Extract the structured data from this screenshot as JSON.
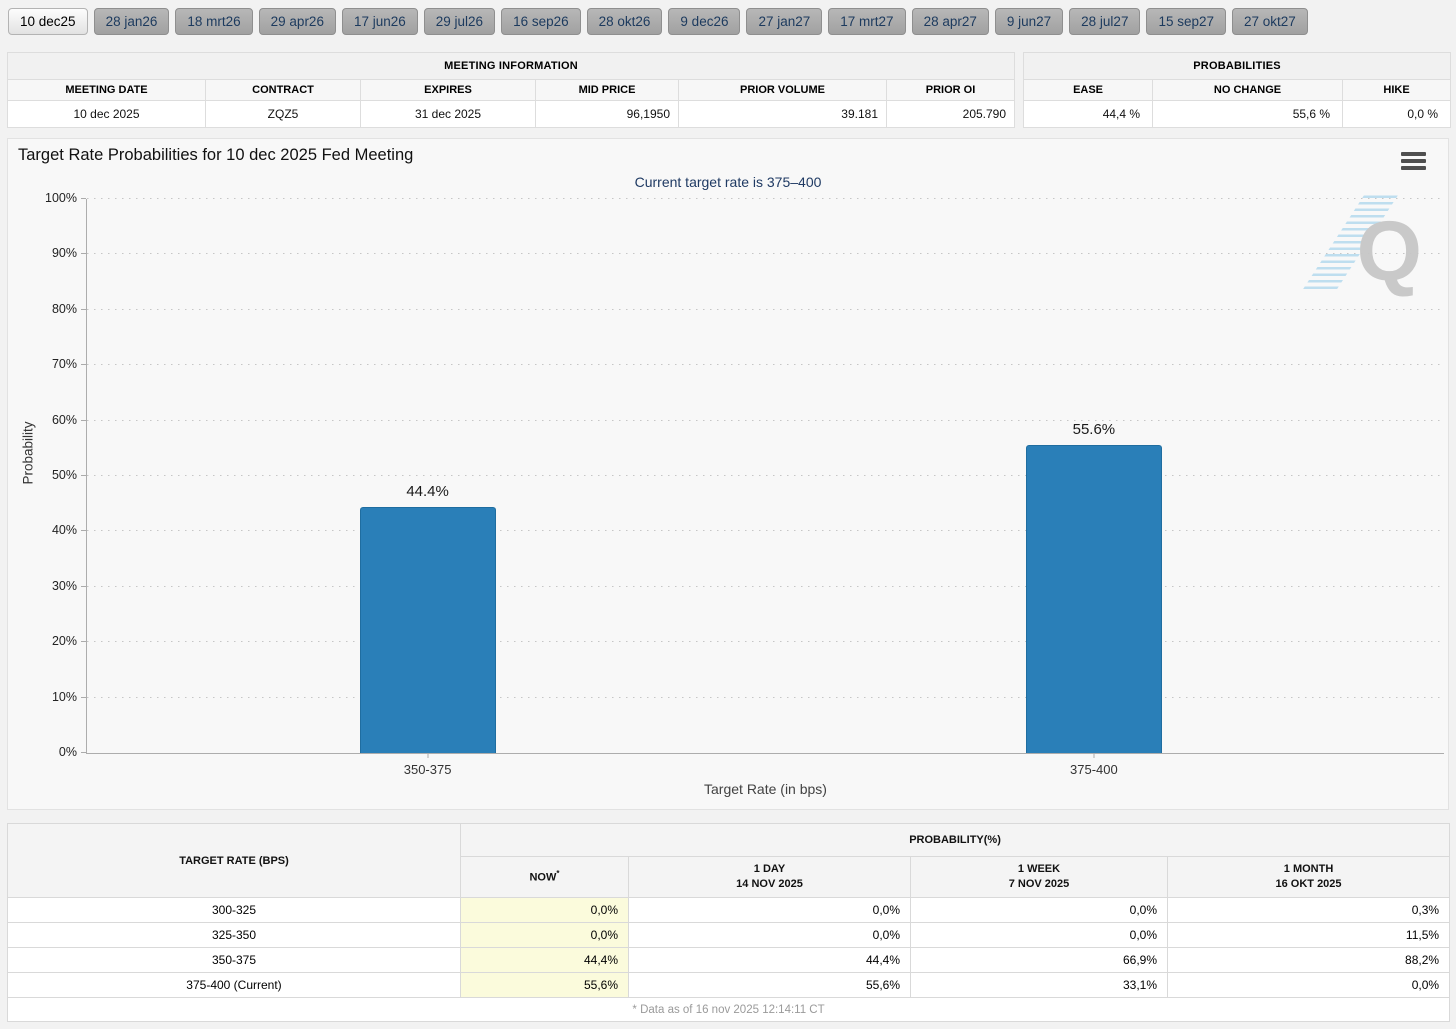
{
  "tabs": [
    {
      "label": "10 dec25",
      "selected": true
    },
    {
      "label": "28 jan26",
      "selected": false
    },
    {
      "label": "18 mrt26",
      "selected": false
    },
    {
      "label": "29 apr26",
      "selected": false
    },
    {
      "label": "17 jun26",
      "selected": false
    },
    {
      "label": "29 jul26",
      "selected": false
    },
    {
      "label": "16 sep26",
      "selected": false
    },
    {
      "label": "28 okt26",
      "selected": false
    },
    {
      "label": "9 dec26",
      "selected": false
    },
    {
      "label": "27 jan27",
      "selected": false
    },
    {
      "label": "17 mrt27",
      "selected": false
    },
    {
      "label": "28 apr27",
      "selected": false
    },
    {
      "label": "9 jun27",
      "selected": false
    },
    {
      "label": "28 jul27",
      "selected": false
    },
    {
      "label": "15 sep27",
      "selected": false
    },
    {
      "label": "27 okt27",
      "selected": false
    }
  ],
  "meeting_info": {
    "title": "MEETING INFORMATION",
    "headers": [
      "MEETING DATE",
      "CONTRACT",
      "EXPIRES",
      "MID PRICE",
      "PRIOR VOLUME",
      "PRIOR OI"
    ],
    "values": [
      "10 dec 2025",
      "ZQZ5",
      "31 dec 2025",
      "96,1950",
      "39.181",
      "205.790"
    ]
  },
  "probabilities": {
    "title": "PROBABILITIES",
    "headers": [
      "EASE",
      "NO CHANGE",
      "HIKE"
    ],
    "values": [
      "44,4 %",
      "55,6 %",
      "0,0 %"
    ]
  },
  "menu_icon": "hamburger-menu",
  "watermark_letter": "Q",
  "chart_data": {
    "type": "bar",
    "title": "Target Rate Probabilities for 10 dec 2025 Fed Meeting",
    "subtitle": "Current target rate is 375–400",
    "categories": [
      "350-375",
      "375-400"
    ],
    "values": [
      44.4,
      55.6
    ],
    "bar_labels": [
      "44.4%",
      "55.6%"
    ],
    "bar_positions_pct": [
      25.1,
      74.2
    ],
    "xlabel": "Target Rate (in bps)",
    "ylabel": "Probability",
    "ylim": [
      0,
      100
    ],
    "y_ticks": [
      "0%",
      "10%",
      "20%",
      "30%",
      "40%",
      "50%",
      "60%",
      "70%",
      "80%",
      "90%",
      "100%"
    ],
    "grid": "dotted-horizontal",
    "legend": "none",
    "bar_color": "#2a7fb8"
  },
  "history_table": {
    "rate_header": "TARGET RATE (BPS)",
    "group_header": "PROBABILITY(%)",
    "col_now": "NOW",
    "col_now_sup": "*",
    "col_1day_l1": "1 DAY",
    "col_1day_l2": "14 NOV 2025",
    "col_1week_l1": "1 WEEK",
    "col_1week_l2": "7 NOV 2025",
    "col_1month_l1": "1 MONTH",
    "col_1month_l2": "16 OKT 2025",
    "rows": [
      {
        "rate": "300-325",
        "now": "0,0%",
        "d1": "0,0%",
        "w1": "0,0%",
        "m1": "0,3%"
      },
      {
        "rate": "325-350",
        "now": "0,0%",
        "d1": "0,0%",
        "w1": "0,0%",
        "m1": "11,5%"
      },
      {
        "rate": "350-375",
        "now": "44,4%",
        "d1": "44,4%",
        "w1": "66,9%",
        "m1": "88,2%"
      },
      {
        "rate": "375-400 (Current)",
        "now": "55,6%",
        "d1": "55,6%",
        "w1": "33,1%",
        "m1": "0,0%"
      }
    ],
    "footnote": "* Data as of 16 nov 2025 12:14:11 CT",
    "now_highlight_color": "#fbfbdc"
  }
}
